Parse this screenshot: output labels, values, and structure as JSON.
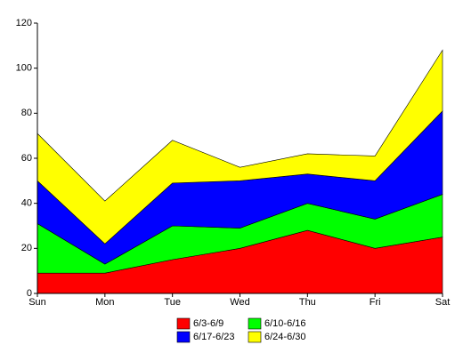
{
  "chart_data": {
    "type": "stacked-area",
    "categories": [
      "Sun",
      "Mon",
      "Tue",
      "Wed",
      "Thu",
      "Fri",
      "Sat"
    ],
    "series": [
      {
        "name": "6/3-6/9",
        "color": "#ff0000",
        "values": [
          9,
          9,
          15,
          20,
          28,
          20,
          25
        ]
      },
      {
        "name": "6/10-6/16",
        "color": "#00ff00",
        "values": [
          22,
          4,
          15,
          9,
          12,
          13,
          19
        ]
      },
      {
        "name": "6/17-6/23",
        "color": "#0000ff",
        "values": [
          19,
          9,
          19,
          21,
          13,
          17,
          37
        ]
      },
      {
        "name": "6/24-6/30",
        "color": "#ffff00",
        "values": [
          21,
          19,
          19,
          6,
          9,
          11,
          27
        ]
      }
    ],
    "ylim": [
      0,
      120
    ],
    "yticks": [
      0,
      20,
      40,
      60,
      80,
      100,
      120
    ],
    "grid": false
  }
}
